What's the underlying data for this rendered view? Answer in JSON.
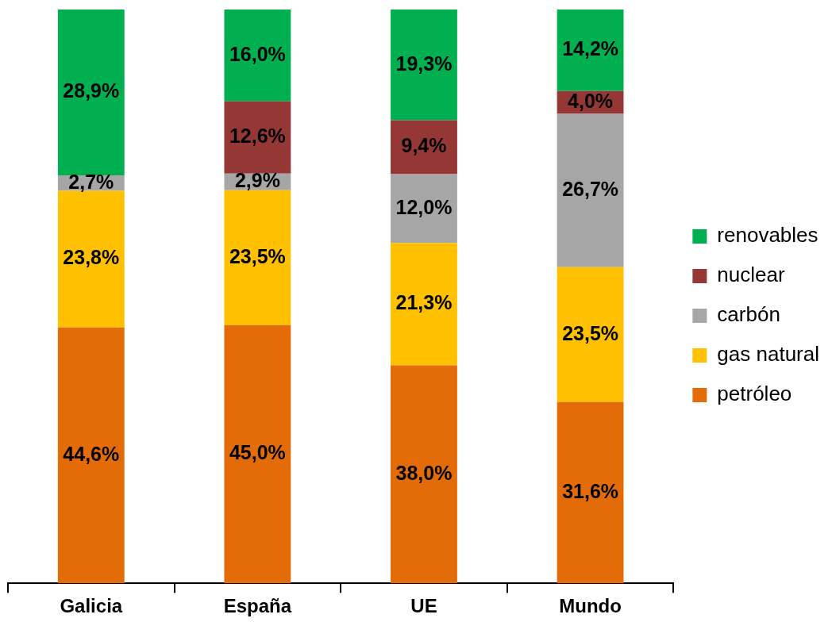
{
  "chart_data": {
    "type": "bar",
    "stacked": true,
    "categories": [
      "Galicia",
      "España",
      "UE",
      "Mundo"
    ],
    "legend": "right",
    "series": [
      {
        "name": "petróleo",
        "color": "#e36c09",
        "values": [
          44.6,
          45.0,
          38.0,
          31.6
        ],
        "value_labels": [
          "44,6%",
          "45,0%",
          "38,0%",
          "31,6%"
        ]
      },
      {
        "name": "gas natural",
        "color": "#ffc000",
        "values": [
          23.8,
          23.5,
          21.3,
          23.5
        ],
        "value_labels": [
          "23,8%",
          "23,5%",
          "21,3%",
          "23,5%"
        ]
      },
      {
        "name": "carbón",
        "color": "#a6a6a6",
        "values": [
          2.7,
          2.9,
          12.0,
          26.7
        ],
        "value_labels": [
          "2,7%",
          "2,9%",
          "12,0%",
          "26,7%"
        ]
      },
      {
        "name": "nuclear",
        "color": "#953735",
        "values": [
          null,
          12.6,
          9.4,
          4.0
        ],
        "value_labels": [
          null,
          "12,6%",
          "9,4%",
          "4,0%"
        ]
      },
      {
        "name": "renovables",
        "color": "#00b050",
        "values": [
          28.9,
          16.0,
          19.3,
          14.2
        ],
        "value_labels": [
          "28,9%",
          "16,0%",
          "19,3%",
          "14,2%"
        ]
      }
    ]
  }
}
